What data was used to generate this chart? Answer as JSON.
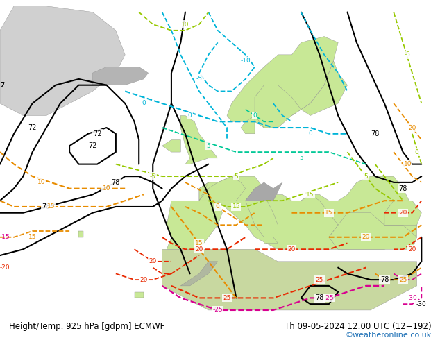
{
  "title_left": "Height/Temp. 925 hPa [gdpm] ECMWF",
  "title_right": "Th 09-05-2024 12:00 UTC (12+192)",
  "copyright": "©weatheronline.co.uk",
  "land_green_color": "#c8e896",
  "land_gray_color": "#b4b4b4",
  "sea_color": "#d8d8d8",
  "bg_color": "#d8d8d8",
  "title_fontsize": 8.5,
  "copyright_color": "#1a6eb5",
  "figsize": [
    6.34,
    4.9
  ],
  "dpi": 100,
  "black_color": "#000000",
  "cyan_color": "#00b4d8",
  "teal_color": "#00c896",
  "green_color": "#96c800",
  "orange_color": "#e88c00",
  "red_color": "#e82800",
  "magenta_color": "#d80090"
}
